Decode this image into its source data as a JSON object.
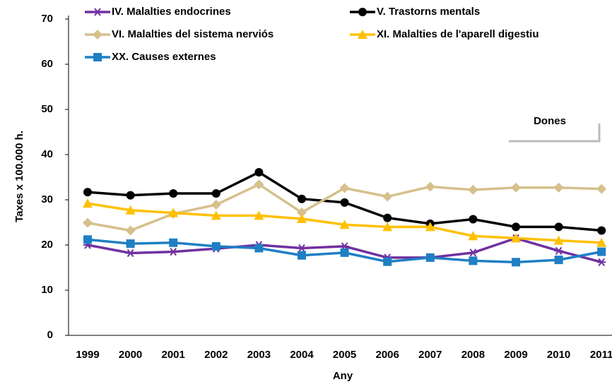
{
  "chart_data": {
    "type": "line",
    "x_label": "Any",
    "y_label": "Taxes x 100.000 h.",
    "annotation": "Dones",
    "categories": [
      "1999",
      "2000",
      "2001",
      "2002",
      "2003",
      "2004",
      "2005",
      "2006",
      "2007",
      "2008",
      "2009",
      "2010",
      "2011"
    ],
    "series": [
      {
        "name": "IV. Malalties endocrines",
        "color": "#7030a0",
        "marker": "asterisk",
        "values": [
          20,
          18.2,
          18.5,
          19.2,
          20,
          19.3,
          19.7,
          17.2,
          17.2,
          18.3,
          21.5,
          18.7,
          16.2
        ]
      },
      {
        "name": "V. Trastorns  mentals",
        "color": "#000000",
        "marker": "circle",
        "values": [
          31.7,
          31,
          31.4,
          31.4,
          36.1,
          30.2,
          29.4,
          26,
          24.7,
          25.7,
          24,
          24,
          23.2
        ]
      },
      {
        "name": "VI. Malalties del sistema nerviós",
        "color": "#d6c08c",
        "marker": "diamond",
        "values": [
          24.9,
          23.2,
          26.9,
          28.9,
          33.4,
          27.2,
          32.6,
          30.7,
          32.9,
          32.2,
          32.7,
          32.7,
          32.4
        ]
      },
      {
        "name": "XI. Malalties de l'aparell digestiu",
        "color": "#ffc000",
        "marker": "triangle",
        "values": [
          29.2,
          27.7,
          27.1,
          26.5,
          26.5,
          25.8,
          24.5,
          24,
          24,
          22,
          21.5,
          21,
          20.5
        ]
      },
      {
        "name": "XX. Causes externes",
        "color": "#1f7fc4",
        "marker": "square",
        "values": [
          21.2,
          20.3,
          20.5,
          19.7,
          19.3,
          17.7,
          18.3,
          16.3,
          17.2,
          16.5,
          16.2,
          16.7,
          18.5
        ]
      }
    ],
    "ylim": [
      0,
      70
    ],
    "yticks": [
      0,
      10,
      20,
      30,
      40,
      50,
      60,
      70
    ],
    "grid": false
  }
}
